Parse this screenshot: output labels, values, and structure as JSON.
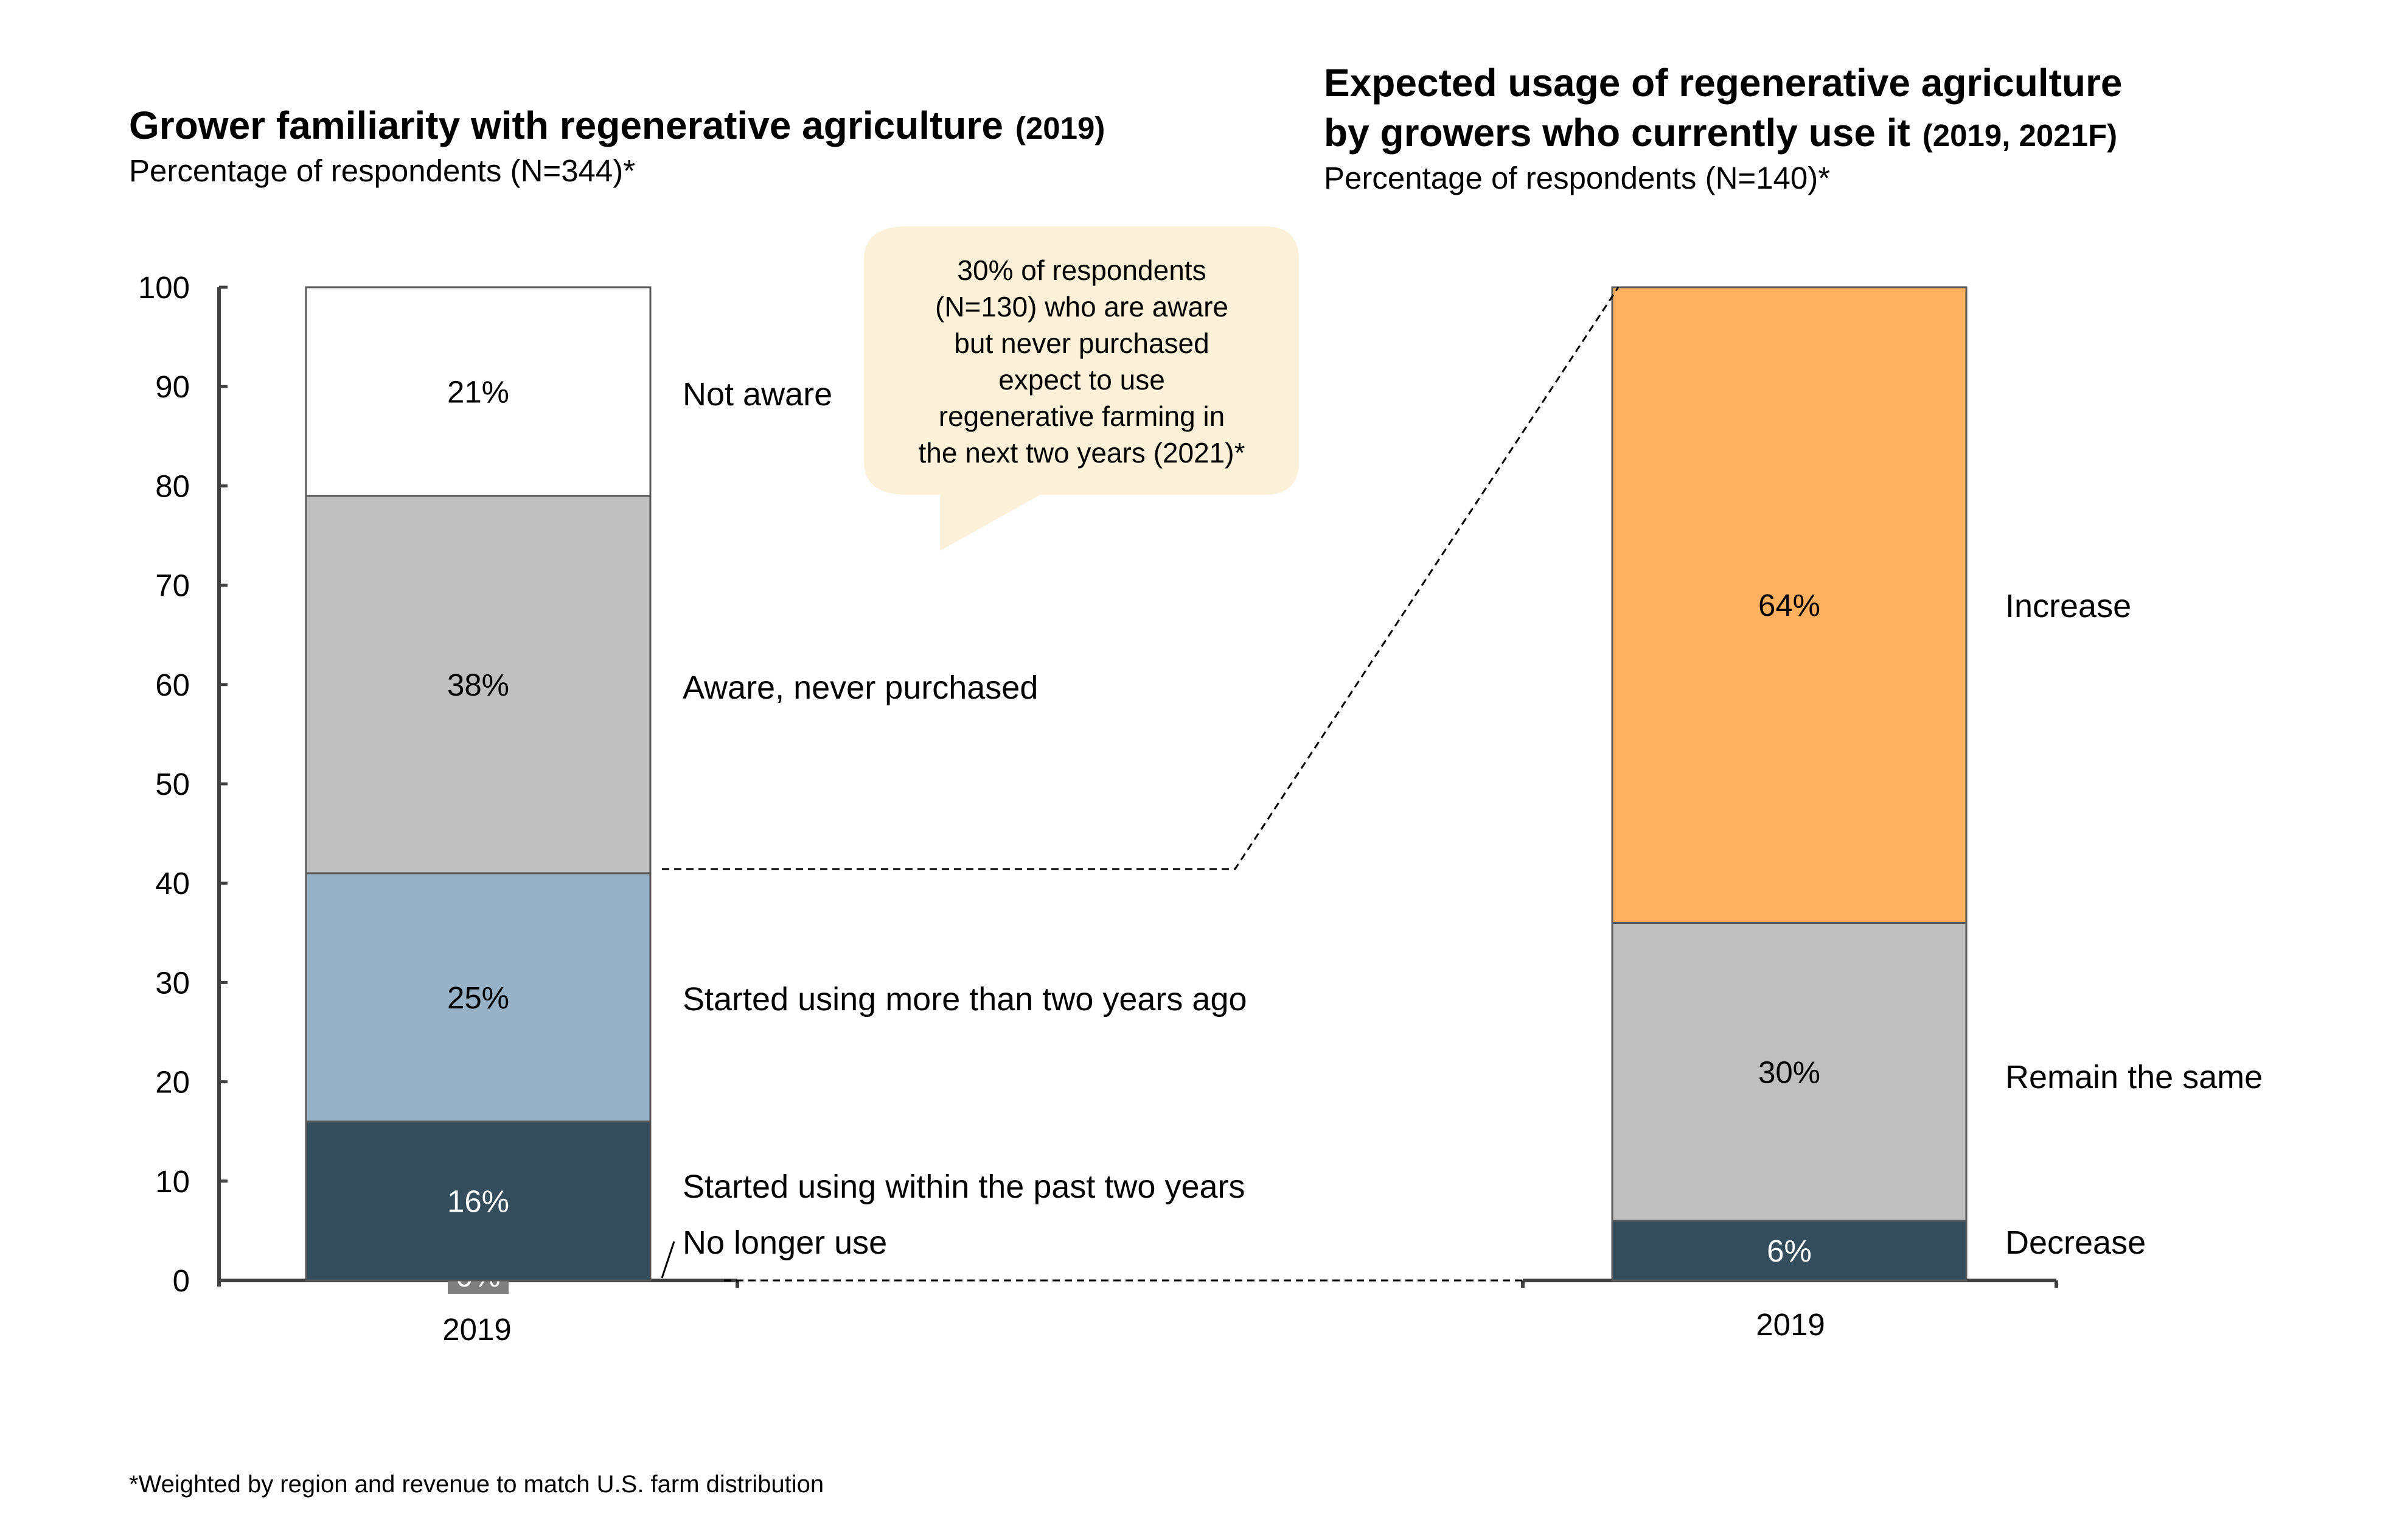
{
  "colors": {
    "white_segment": "#FFFFFF",
    "gray_segment": "#BFBFBF",
    "light_blue_segment": "#97B1C6",
    "dark_segment": "#344D5C",
    "orange_segment": "#FFB05E",
    "zero_box": "#7F7F7F",
    "callout_bg": "#FCF1D8",
    "axis": "#404040"
  },
  "chart_data": [
    {
      "type": "bar",
      "stacked": true,
      "title": "Grower familiarity with regenerative agriculture",
      "title_suffix": "(2019)",
      "subtitle": "Percentage of respondents (N=344)*",
      "categories": [
        "2019"
      ],
      "ylim": [
        0,
        100
      ],
      "yticks": [
        0,
        10,
        20,
        30,
        40,
        50,
        60,
        70,
        80,
        90,
        100
      ],
      "series": [
        {
          "name": "No longer use",
          "values": [
            0
          ],
          "label": "0%",
          "color": "#7F7F7F"
        },
        {
          "name": "Started using within the past two years",
          "values": [
            16
          ],
          "label": "16%",
          "color": "#344D5C"
        },
        {
          "name": "Started using more than two years ago",
          "values": [
            25
          ],
          "label": "25%",
          "color": "#97B1C6"
        },
        {
          "name": "Aware, never purchased",
          "values": [
            38
          ],
          "label": "38%",
          "color": "#BFBFBF"
        },
        {
          "name": "Not aware",
          "values": [
            21
          ],
          "label": "21%",
          "color": "#FFFFFF"
        }
      ]
    },
    {
      "type": "bar",
      "stacked": true,
      "title_line1": "Expected usage of regenerative agriculture",
      "title_line2": "by growers who currently use it",
      "title_suffix": "(2019, 2021F)",
      "subtitle": "Percentage of respondents (N=140)*",
      "categories": [
        "2019"
      ],
      "ylim": [
        0,
        100
      ],
      "series": [
        {
          "name": "Decrease",
          "values": [
            6
          ],
          "label": "6%",
          "color": "#344D5C"
        },
        {
          "name": "Remain the same",
          "values": [
            30
          ],
          "label": "30%",
          "color": "#BFBFBF"
        },
        {
          "name": "Increase",
          "values": [
            64
          ],
          "label": "64%",
          "color": "#FFB05E"
        }
      ]
    }
  ],
  "callout": {
    "lines": [
      "30% of respondents",
      "(N=130) who are aware",
      "but never purchased",
      "expect to use",
      "regenerative farming in",
      "the next two years (2021)*"
    ]
  },
  "footnote": "*Weighted by region and revenue to match U.S. farm distribution"
}
